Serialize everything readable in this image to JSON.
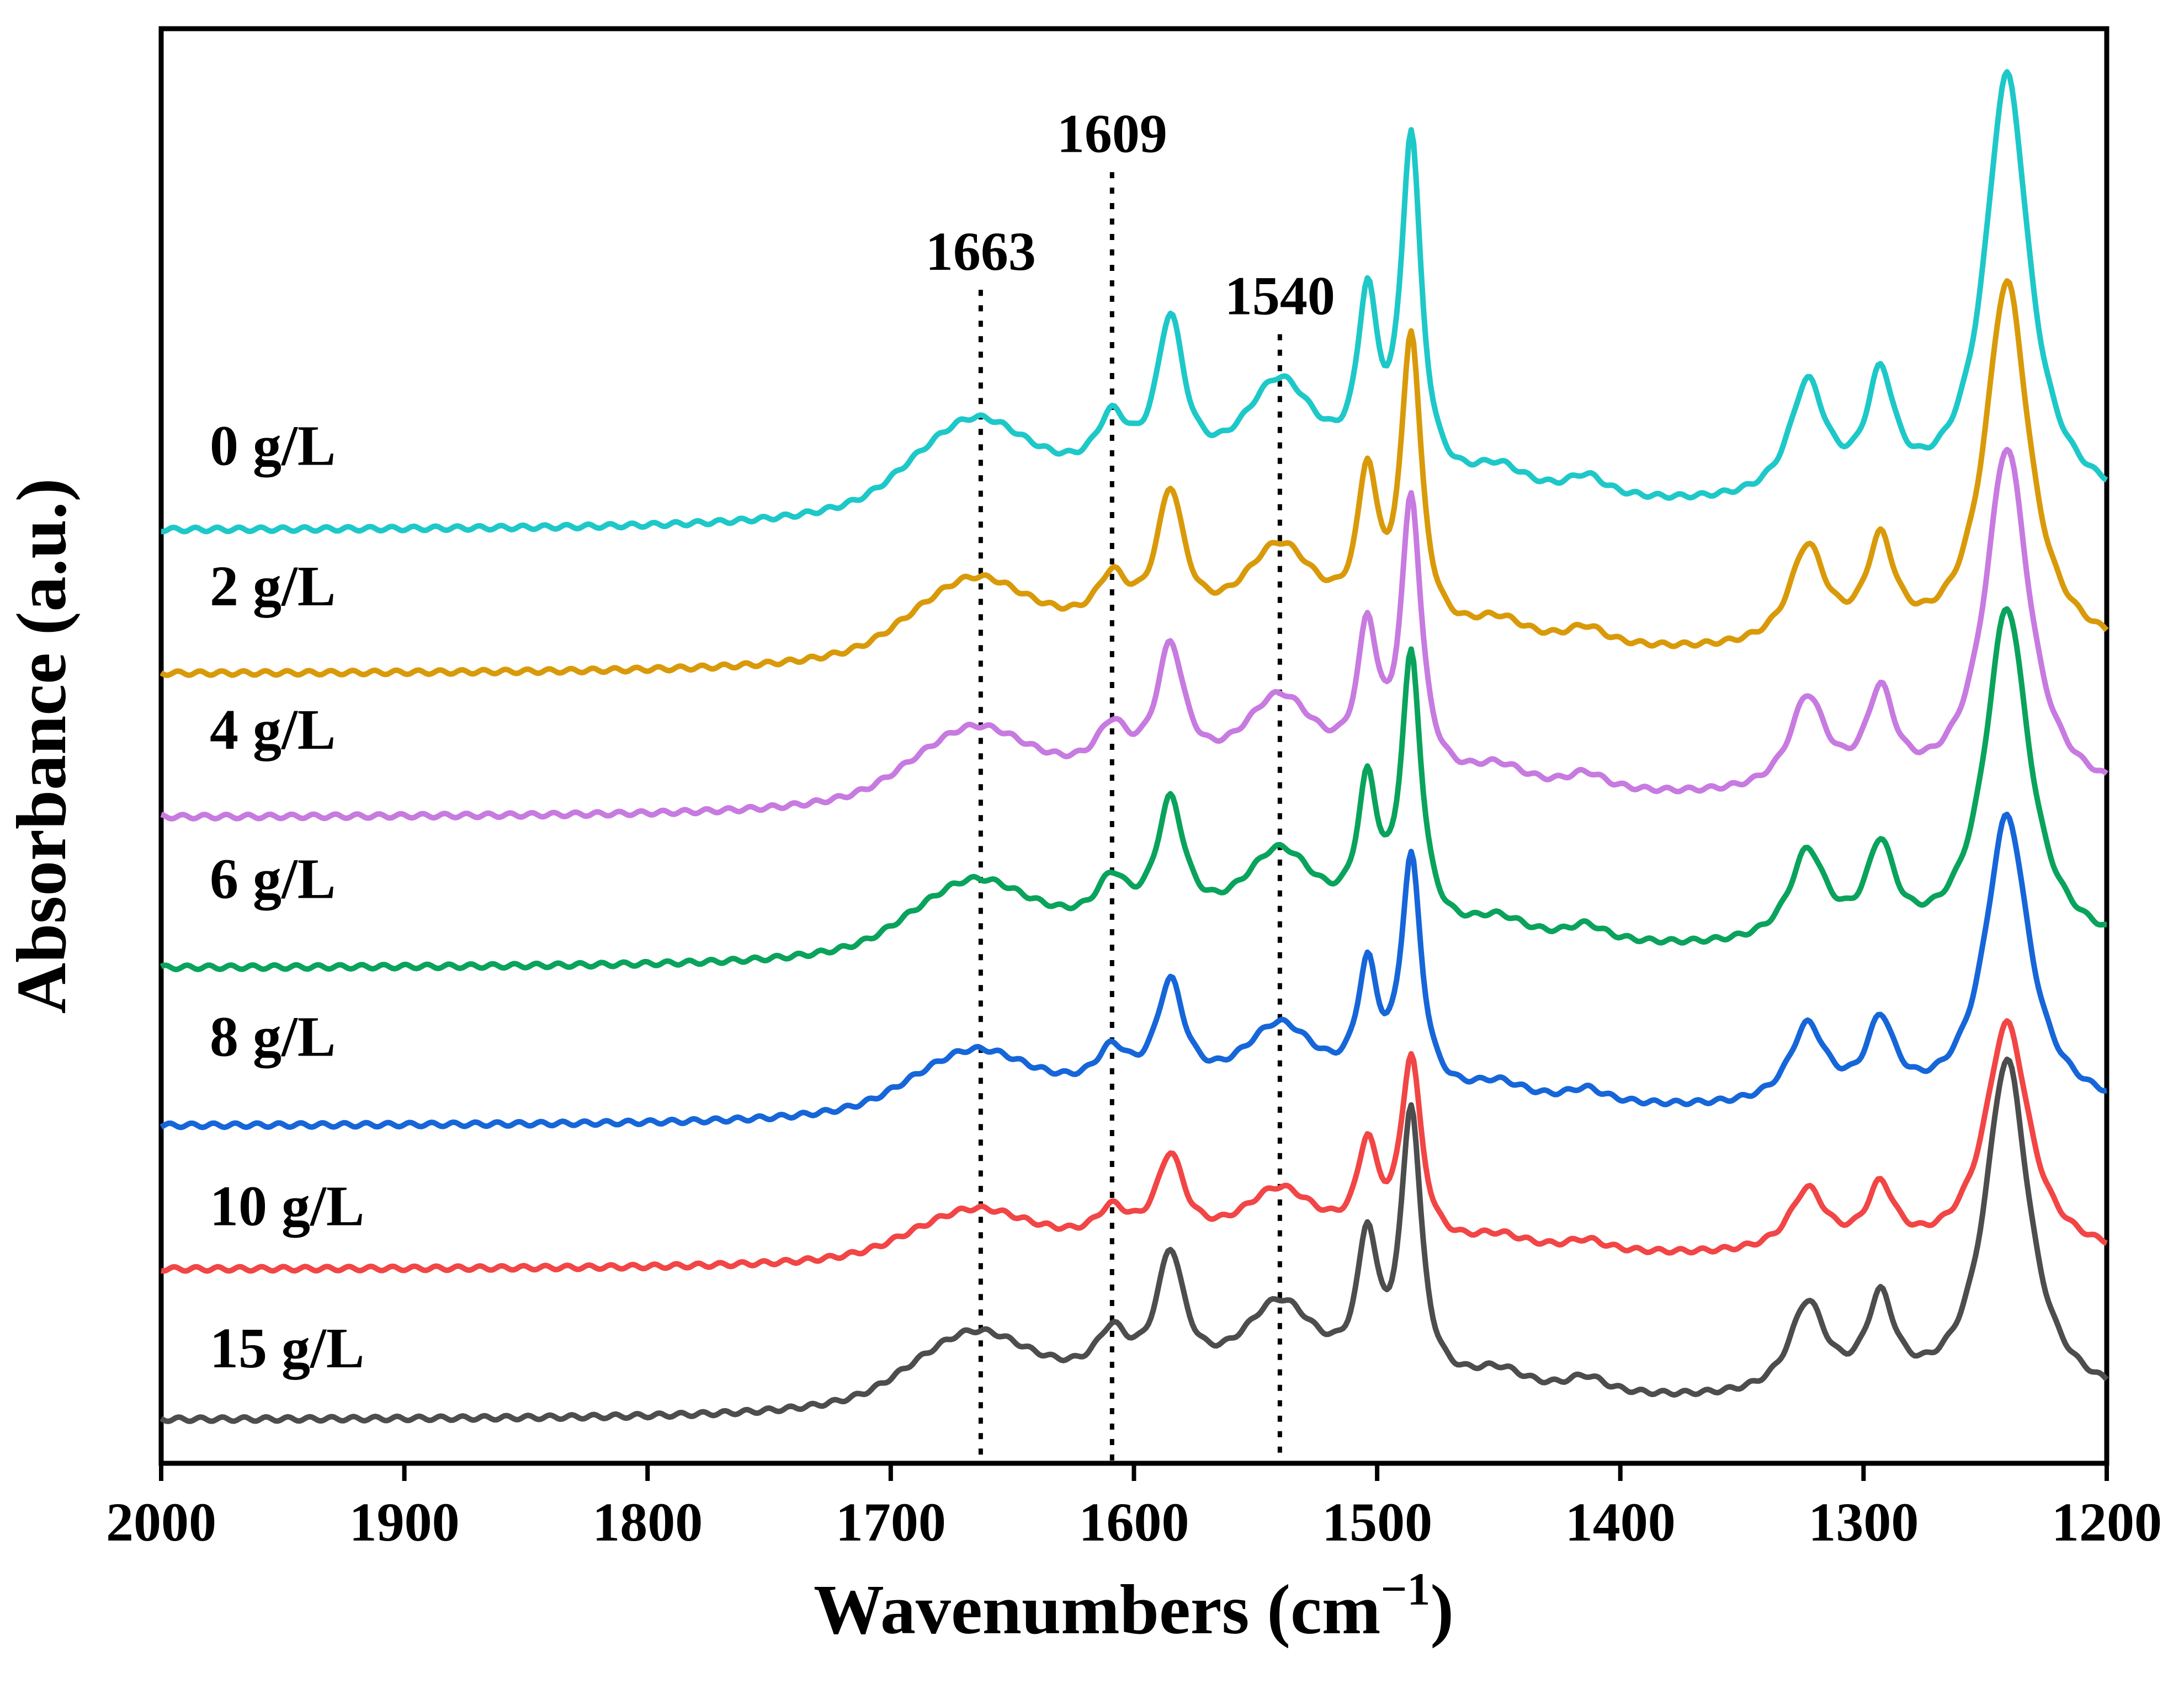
{
  "chart_data": {
    "type": "line",
    "title": "",
    "xlabel": "Wavenumbers (cm",
    "xlabel_sup": "−1",
    "xlabel_close": ")",
    "ylabel": "Absorbance (a.u.)",
    "xlim": [
      2000,
      1200
    ],
    "x_reversed": true,
    "ylim": [
      0,
      1
    ],
    "y_ticks_shown": false,
    "x_ticks": [
      2000,
      1900,
      1800,
      1700,
      1600,
      1500,
      1400,
      1300,
      1200
    ],
    "x_tick_labels": [
      "2000",
      "1900",
      "1800",
      "1700",
      "1600",
      "1500",
      "1400",
      "1300",
      "1200"
    ],
    "annotations": [
      {
        "text": "1663",
        "x": 1663,
        "line_top": 0.818,
        "label_y": 0.832
      },
      {
        "text": "1609",
        "x": 1609,
        "line_top": 0.9,
        "label_y": 0.914
      },
      {
        "text": "1540",
        "x": 1540,
        "line_top": 0.787,
        "label_y": 0.801
      }
    ],
    "series": [
      {
        "name": "0 g/L",
        "color": "#1ec8c8",
        "baseline": 0.65,
        "scale": 1.0,
        "label_y": 0.696
      },
      {
        "name": "2 g/L",
        "color": "#d99a0a",
        "baseline": 0.55,
        "scale": 0.86,
        "label_y": 0.598
      },
      {
        "name": "4 g/L",
        "color": "#c77ae0",
        "baseline": 0.45,
        "scale": 0.81,
        "label_y": 0.498
      },
      {
        "name": "6 g/L",
        "color": "#0aa35c",
        "baseline": 0.345,
        "scale": 0.79,
        "label_y": 0.394
      },
      {
        "name": "8 g/L",
        "color": "#1666d9",
        "baseline": 0.235,
        "scale": 0.68,
        "label_y": 0.284
      },
      {
        "name": "10 g/L",
        "color": "#f24545",
        "baseline": 0.135,
        "scale": 0.54,
        "label_y": 0.166
      },
      {
        "name": "15 g/L",
        "color": "#4d4d4d",
        "baseline": 0.03,
        "scale": 0.79,
        "label_y": 0.067
      }
    ],
    "peaks": [
      {
        "center": 1665,
        "height": 0.06,
        "width": 32
      },
      {
        "center": 1609,
        "height": 0.04,
        "width": 8
      },
      {
        "center": 1585,
        "height": 0.11,
        "width": 7
      },
      {
        "center": 1540,
        "height": 0.08,
        "width": 20
      },
      {
        "center": 1504,
        "height": 0.12,
        "width": 5
      },
      {
        "center": 1486,
        "height": 0.24,
        "width": 5
      },
      {
        "center": 1450,
        "height": 0.02,
        "width": 15
      },
      {
        "center": 1414,
        "height": 0.015,
        "width": 10
      },
      {
        "center": 1323,
        "height": 0.08,
        "width": 9
      },
      {
        "center": 1293,
        "height": 0.08,
        "width": 7
      },
      {
        "center": 1241,
        "height": 0.3,
        "width": 11
      }
    ],
    "step": {
      "center": 1700,
      "height": 0.015,
      "width": 7
    }
  }
}
